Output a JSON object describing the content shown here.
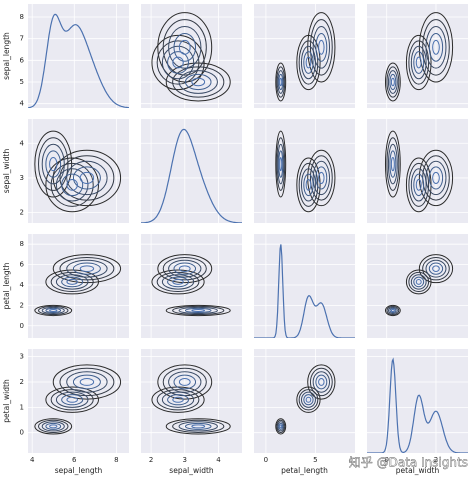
{
  "chart_data": {
    "type": "pairplot",
    "variables": [
      "sepal_length",
      "sepal_width",
      "petal_length",
      "petal_width"
    ],
    "axes": [
      {
        "lim": [
          3.8,
          8.6
        ],
        "xticks": [
          4,
          6,
          8
        ],
        "yticks": [
          4,
          5,
          6,
          7,
          8
        ]
      },
      {
        "lim": [
          1.7,
          4.7
        ],
        "xticks": [
          2,
          3,
          4
        ],
        "yticks": [
          2,
          3,
          4
        ]
      },
      {
        "lim": [
          -1.2,
          9
        ],
        "xticks": [
          0,
          5
        ],
        "yticks": [
          0,
          2,
          4,
          6,
          8
        ]
      },
      {
        "lim": [
          -0.8,
          3.3
        ],
        "xticks": [
          0,
          2
        ],
        "yticks": [
          0,
          1,
          2,
          3
        ]
      }
    ],
    "group_means": [
      [
        5.0,
        3.4,
        1.5,
        0.25
      ],
      [
        5.9,
        2.8,
        4.3,
        1.3
      ],
      [
        6.6,
        3.0,
        5.6,
        2.0
      ]
    ],
    "group_sds": [
      [
        0.35,
        0.38,
        0.2,
        0.12
      ],
      [
        0.5,
        0.31,
        0.47,
        0.2
      ],
      [
        0.64,
        0.32,
        0.55,
        0.27
      ]
    ],
    "contour_levels": [
      0.5,
      1.0,
      1.5,
      2.0,
      2.5
    ],
    "contour_colors": [
      "#4c72b0",
      "#3f5f8f",
      "#3a4b66",
      "#333a46",
      "#2b2b2b"
    ],
    "line_color": "#4c72b0",
    "background": "#eaeaf2",
    "grid": true,
    "watermark": "知乎 @Data Insights"
  }
}
